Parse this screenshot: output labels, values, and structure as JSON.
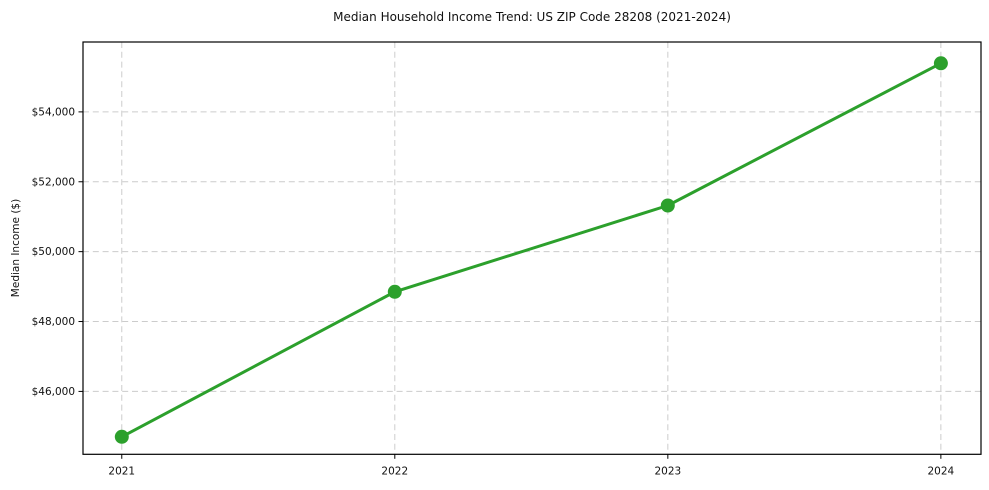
{
  "chart_data": {
    "type": "line",
    "title": "Median Household Income Trend: US ZIP Code 28208 (2021-2024)",
    "xlabel": "",
    "ylabel": "Median Income ($)",
    "x": [
      2021,
      2022,
      2023,
      2024
    ],
    "x_tick_labels": [
      "2021",
      "2022",
      "2023",
      "2024"
    ],
    "series": [
      {
        "name": "Median Household Income",
        "values": [
          44700,
          48850,
          51320,
          55390
        ]
      }
    ],
    "y_ticks": [
      46000,
      48000,
      50000,
      52000,
      54000
    ],
    "y_tick_labels": [
      "$46,000",
      "$48,000",
      "$50,000",
      "$52,000",
      "$54,000"
    ],
    "xlim": [
      2020.858,
      2024.147
    ],
    "ylim": [
      44200,
      56000
    ],
    "grid": true,
    "grid_style": "dashed",
    "legend": false,
    "colors": {
      "line": "#2ca02c",
      "marker": "#2ca02c",
      "grid": "#cccccc",
      "spine": "#000000",
      "text": "#111111",
      "background": "#ffffff"
    }
  }
}
